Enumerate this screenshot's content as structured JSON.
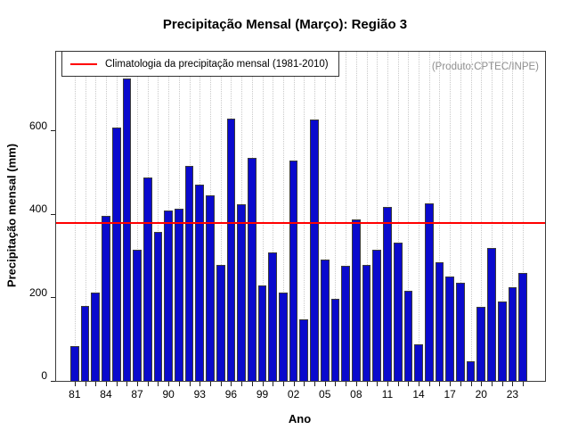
{
  "title": "Precipitação Mensal (Março): Região 3",
  "legend": {
    "label": "Climatologia da precipitação mensal (1981-2010)"
  },
  "annotation": "(Produto:CPTEC/INPE)",
  "axes": {
    "xlabel": "Ano",
    "ylabel": "Precipitação mensal (mm)"
  },
  "colors": {
    "bar": "#0a0acd",
    "bar_border": "#3a3a3a",
    "reference_line": "#ff0000",
    "annotation_text": "#8e8e8e",
    "gridline": "#c9c9c9"
  },
  "chart_data": {
    "type": "bar",
    "title": "Precipitação Mensal (Março): Região 3",
    "xlabel": "Ano",
    "ylabel": "Precipitação mensal (mm)",
    "categories": [
      1981,
      1982,
      1983,
      1984,
      1985,
      1986,
      1987,
      1988,
      1989,
      1990,
      1991,
      1992,
      1993,
      1994,
      1995,
      1996,
      1997,
      1998,
      1999,
      2000,
      2001,
      2002,
      2003,
      2004,
      2005,
      2006,
      2007,
      2008,
      2009,
      2010,
      2011,
      2012,
      2013,
      2014,
      2015,
      2016,
      2017,
      2018,
      2019,
      2020,
      2021,
      2022,
      2023,
      2024
    ],
    "values": [
      84,
      179,
      211,
      397,
      608,
      726,
      315,
      488,
      358,
      410,
      414,
      517,
      470,
      445,
      279,
      629,
      424,
      536,
      229,
      308,
      213,
      529,
      148,
      627,
      292,
      197,
      276,
      388,
      279,
      315,
      418,
      332,
      216,
      88,
      426,
      284,
      250,
      235,
      48,
      178,
      319,
      190,
      225,
      259
    ],
    "x_tick_labels": [
      "81",
      "84",
      "87",
      "90",
      "93",
      "96",
      "99",
      "02",
      "05",
      "08",
      "11",
      "14",
      "17",
      "20",
      "23"
    ],
    "x_tick_label_step": 3,
    "y_ticks": [
      0,
      200,
      400,
      600
    ],
    "ylim": [
      0,
      790
    ],
    "reference_line": {
      "value": 377,
      "label": "Climatologia da precipitação mensal (1981-2010)",
      "color": "#ff0000"
    },
    "grid": "vertical-dotted",
    "legend_position": "top-left-inside",
    "annotation": "(Produto:CPTEC/INPE)"
  }
}
